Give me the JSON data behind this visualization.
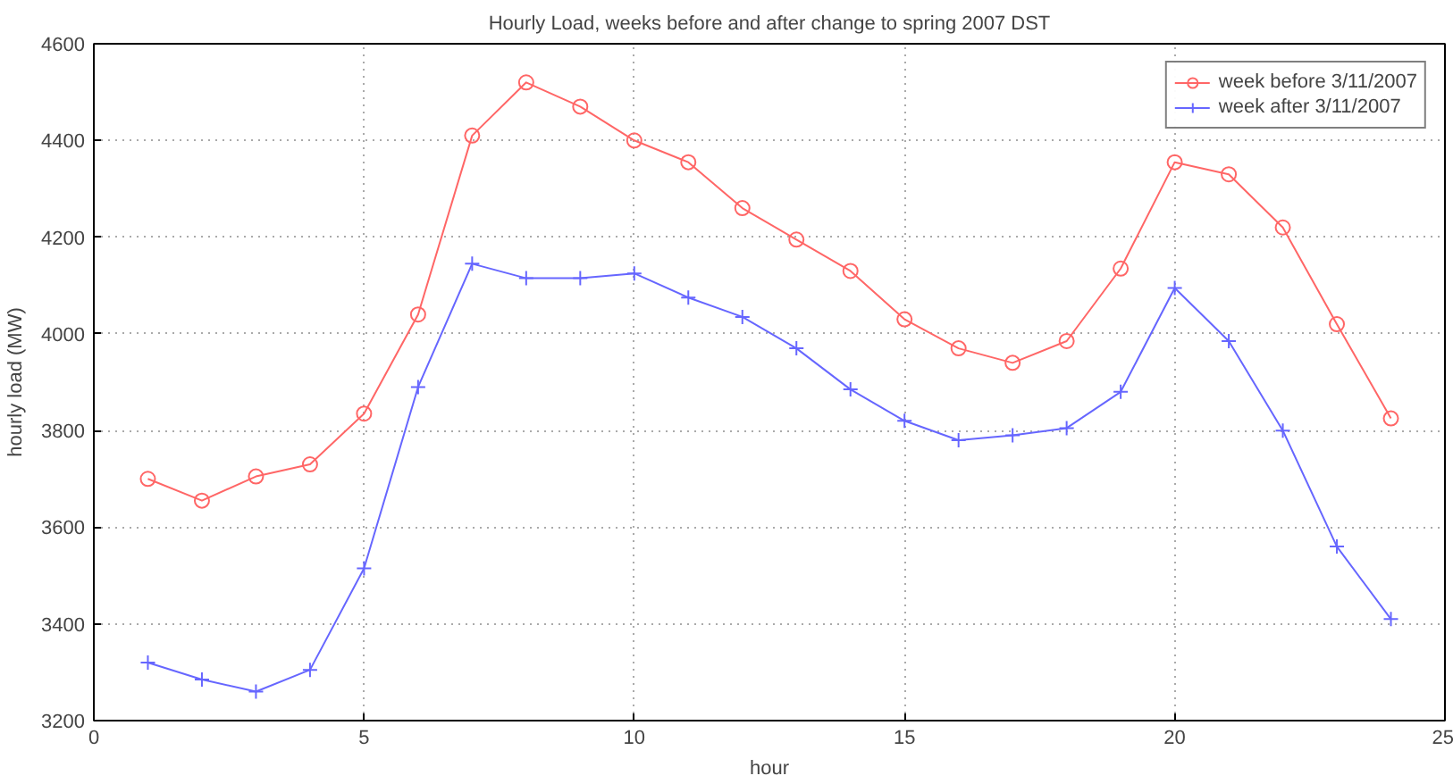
{
  "chart_data": {
    "type": "line",
    "title": "Hourly Load, weeks before and after change to spring 2007 DST",
    "xlabel": "hour",
    "ylabel": "hourly load (MW)",
    "x": [
      1,
      2,
      3,
      4,
      5,
      6,
      7,
      8,
      9,
      10,
      11,
      12,
      13,
      14,
      15,
      16,
      17,
      18,
      19,
      20,
      21,
      22,
      23,
      24
    ],
    "series": [
      {
        "name": "week before 3/11/2007",
        "color": "#ff6666",
        "marker": "circle",
        "values": [
          3700,
          3655,
          3705,
          3730,
          3835,
          4040,
          4410,
          4520,
          4470,
          4400,
          4355,
          4260,
          4195,
          4130,
          4030,
          3970,
          3940,
          3985,
          4135,
          4355,
          4330,
          4220,
          4020,
          3825
        ]
      },
      {
        "name": "week after 3/11/2007",
        "color": "#6666ff",
        "marker": "cross",
        "values": [
          3320,
          3285,
          3260,
          3305,
          3515,
          3890,
          4145,
          4115,
          4115,
          4125,
          4075,
          4035,
          3970,
          3885,
          3820,
          3780,
          3790,
          3805,
          3880,
          4095,
          3985,
          3800,
          3560,
          3410
        ]
      }
    ],
    "xlim": [
      0,
      25
    ],
    "xticks": [
      0,
      5,
      10,
      15,
      20,
      25
    ],
    "ylim": [
      3200,
      4600
    ],
    "yticks": [
      3200,
      3400,
      3600,
      3800,
      4000,
      4200,
      4400,
      4600
    ],
    "grid": true,
    "legend": "top right",
    "line_style": "solid"
  }
}
